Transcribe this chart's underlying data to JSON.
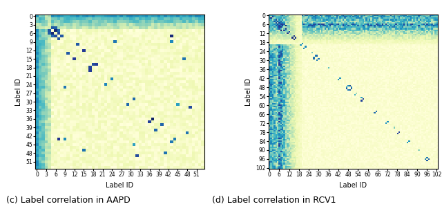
{
  "aapd_size": 54,
  "rcv1_size": 103,
  "aapd_xticks": [
    0,
    3,
    6,
    9,
    12,
    15,
    18,
    21,
    24,
    27,
    30,
    33,
    36,
    39,
    42,
    45,
    48,
    51
  ],
  "aapd_yticks": [
    0,
    3,
    6,
    9,
    12,
    15,
    18,
    21,
    24,
    27,
    30,
    33,
    36,
    39,
    42,
    45,
    48,
    51
  ],
  "rcv1_xticks": [
    0,
    6,
    12,
    18,
    24,
    30,
    36,
    42,
    48,
    54,
    60,
    66,
    72,
    78,
    84,
    90,
    96,
    102
  ],
  "rcv1_yticks": [
    0,
    6,
    12,
    18,
    24,
    30,
    36,
    42,
    48,
    54,
    60,
    66,
    72,
    78,
    84,
    90,
    96,
    102
  ],
  "cmap": "YlGnBu",
  "xlabel": "Label ID",
  "ylabel": "Label ID",
  "title_c": "(c) Label correlation in AAPD",
  "title_d": "(d) Label correlation in RCV1",
  "title_fontsize": 9,
  "tick_fontsize": 5.5,
  "label_fontsize": 7
}
